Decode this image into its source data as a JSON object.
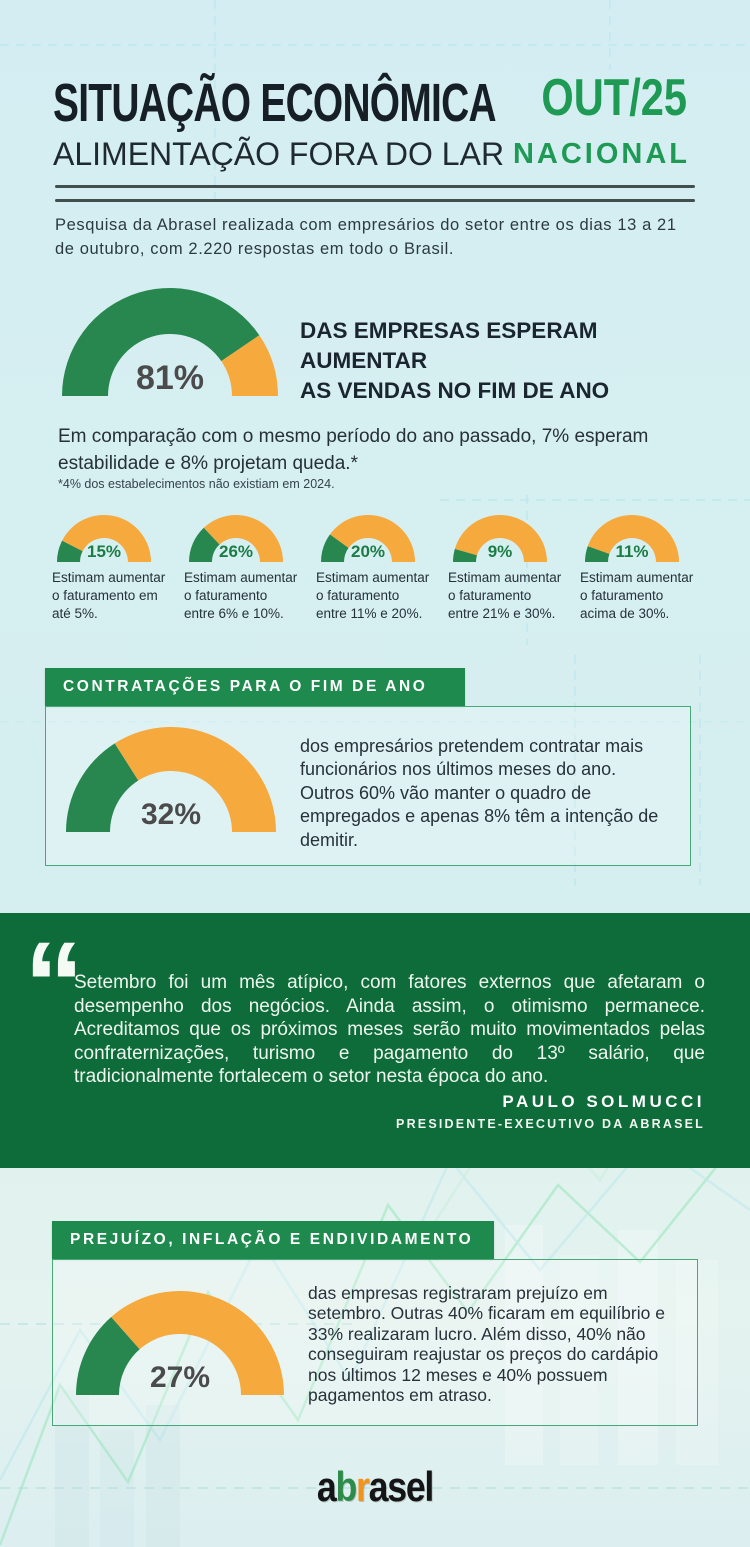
{
  "colors": {
    "gauge_green": "#27874f",
    "gauge_orange": "#f6a93c",
    "banner_green": "#1e8a4d",
    "quote_green": "#0d6c39",
    "title_green": "#1f9a55",
    "pct_green": "#1d7c46",
    "pct_dark": "#4b4b4b",
    "logo_black": "#151515",
    "logo_green": "#2e8b4a",
    "logo_orange": "#f0931f"
  },
  "header": {
    "title_line1": "SITUAÇÃO ECONÔMICA",
    "title_line2": "ALIMENTAÇÃO FORA DO LAR",
    "edition": "OUT/25",
    "scope": "NACIONAL"
  },
  "intro": {
    "text": "Pesquisa da Abrasel realizada com empresários do setor entre os dias 13 a 21 de outubro, com 2.220 respostas em todo o Brasil."
  },
  "hero": {
    "gauge": {
      "percent": 81,
      "label": "81%"
    },
    "heading": "DAS EMPRESAS ESPERAM AUMENTAR\nAS VENDAS NO FIM DE ANO",
    "paragraph": "Em comparação com o mesmo período do ano passado, 7% esperam estabilidade e 8% projetam queda.*",
    "footnote": "*4% dos estabelecimentos não existiam em 2024."
  },
  "revenue_gauges": [
    {
      "percent": 15,
      "label": "15%",
      "caption": "Estimam aumentar\no faturamento em\naté 5%."
    },
    {
      "percent": 26,
      "label": "26%",
      "caption": "Estimam aumentar\no faturamento\nentre 6% e 10%."
    },
    {
      "percent": 20,
      "label": "20%",
      "caption": "Estimam aumentar\no faturamento\nentre 11% e 20%."
    },
    {
      "percent": 9,
      "label": "9%",
      "caption": "Estimam aumentar\no faturamento\nentre 21% e 30%."
    },
    {
      "percent": 11,
      "label": "11%",
      "caption": "Estimam aumentar\no faturamento\nacima de 30%."
    }
  ],
  "hiring": {
    "banner": "CONTRATAÇÕES PARA O FIM DE ANO",
    "gauge": {
      "percent": 32,
      "label": "32%"
    },
    "text": "dos empresários pretendem contratar mais funcionários nos últimos meses do ano. Outros 60% vão manter o quadro de empregados e apenas 8% têm a intenção de demitir."
  },
  "quote": {
    "mark": "“",
    "text": "Setembro foi um mês atípico, com fatores externos que afetaram o desempenho dos negócios. Ainda assim, o otimismo permanece. Acreditamos que os próximos meses serão muito movimentados pelas confraternizações, turismo e pagamento do 13º salário, que tradicionalmente fortalecem o setor nesta época do ano.",
    "author": "PAULO SOLMUCCI",
    "role": "PRESIDENTE-EXECUTIVO DA ABRASEL"
  },
  "losses": {
    "banner": "PREJUÍZO, INFLAÇÃO E ENDIVIDAMENTO",
    "gauge": {
      "percent": 27,
      "label": "27%"
    },
    "text": "das empresas registraram prejuízo em setembro. Outras 40% ficaram em equilíbrio e 33% realizaram lucro. Além disso, 40% não conseguiram reajustar os preços do cardápio nos últimos 12 meses e 40% possuem pagamentos em atraso."
  },
  "footer": {
    "logo": [
      {
        "t": "a",
        "color_key": "logo_black"
      },
      {
        "t": "b",
        "color_key": "logo_green"
      },
      {
        "t": "r",
        "color_key": "logo_orange"
      },
      {
        "t": "asel",
        "color_key": "logo_black"
      }
    ]
  },
  "chart_data": [
    {
      "type": "pie",
      "subtype": "half-donut-gauge",
      "title": "Das empresas esperam aumentar as vendas no fim de ano",
      "series": [
        {
          "name": "esperam aumentar",
          "value": 81
        },
        {
          "name": "restante",
          "value": 19
        }
      ],
      "colors": [
        "#27874f",
        "#f6a93c"
      ],
      "notes": "7% esperam estabilidade, 8% projetam queda, 4% dos estabelecimentos não existiam em 2024"
    },
    {
      "type": "pie",
      "subtype": "half-donut-gauge",
      "title": "Estimam aumentar o faturamento em até 5%",
      "series": [
        {
          "name": "estimam",
          "value": 15
        },
        {
          "name": "restante",
          "value": 85
        }
      ],
      "colors": [
        "#27874f",
        "#f6a93c"
      ]
    },
    {
      "type": "pie",
      "subtype": "half-donut-gauge",
      "title": "Estimam aumentar o faturamento entre 6% e 10%",
      "series": [
        {
          "name": "estimam",
          "value": 26
        },
        {
          "name": "restante",
          "value": 74
        }
      ],
      "colors": [
        "#27874f",
        "#f6a93c"
      ]
    },
    {
      "type": "pie",
      "subtype": "half-donut-gauge",
      "title": "Estimam aumentar o faturamento entre 11% e 20%",
      "series": [
        {
          "name": "estimam",
          "value": 20
        },
        {
          "name": "restante",
          "value": 80
        }
      ],
      "colors": [
        "#27874f",
        "#f6a93c"
      ]
    },
    {
      "type": "pie",
      "subtype": "half-donut-gauge",
      "title": "Estimam aumentar o faturamento entre 21% e 30%",
      "series": [
        {
          "name": "estimam",
          "value": 9
        },
        {
          "name": "restante",
          "value": 91
        }
      ],
      "colors": [
        "#27874f",
        "#f6a93c"
      ]
    },
    {
      "type": "pie",
      "subtype": "half-donut-gauge",
      "title": "Estimam aumentar o faturamento acima de 30%",
      "series": [
        {
          "name": "estimam",
          "value": 11
        },
        {
          "name": "restante",
          "value": 89
        }
      ],
      "colors": [
        "#27874f",
        "#f6a93c"
      ]
    },
    {
      "type": "pie",
      "subtype": "half-donut-gauge",
      "title": "Pretendem contratar mais funcionários nos últimos meses do ano",
      "series": [
        {
          "name": "pretendem contratar",
          "value": 32
        },
        {
          "name": "restante",
          "value": 68
        }
      ],
      "colors": [
        "#27874f",
        "#f6a93c"
      ],
      "notes": "60% vão manter o quadro, 8% têm intenção de demitir"
    },
    {
      "type": "pie",
      "subtype": "half-donut-gauge",
      "title": "Empresas que registraram prejuízo em setembro",
      "series": [
        {
          "name": "prejuízo",
          "value": 27
        },
        {
          "name": "restante",
          "value": 73
        }
      ],
      "colors": [
        "#27874f",
        "#f6a93c"
      ],
      "notes": "40% ficaram em equilíbrio, 33% realizaram lucro, 40% não reajustaram preços em 12 meses, 40% possuem pagamentos em atraso"
    }
  ]
}
